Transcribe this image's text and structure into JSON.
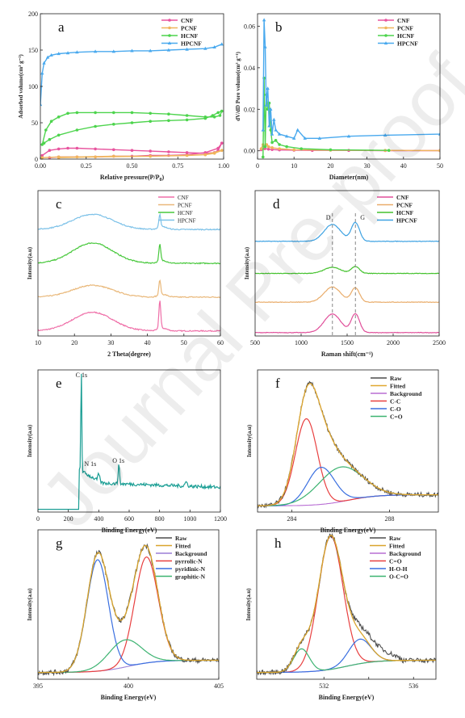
{
  "watermark": "Journal Pre-proof",
  "chart_data": [
    {
      "id": "a",
      "panel_label": "a",
      "type": "line",
      "xlabel": "Relative pressure(P/P",
      "xlabel_sub": "0",
      "xlabel_tail": ")",
      "ylabel": "Adsorbed volume(cm³ g⁻¹)",
      "xlim": [
        0,
        1
      ],
      "ylim": [
        0,
        200
      ],
      "xticks": [
        0.0,
        0.25,
        0.5,
        0.75,
        1.0
      ],
      "xtick_labels": [
        "0.00",
        "0.25",
        "0.50",
        "0.75",
        "1.00"
      ],
      "yticks": [
        0,
        50,
        100,
        150,
        200
      ],
      "ytick_labels": [
        "0",
        "50",
        "100",
        "150",
        "200"
      ],
      "legend": [
        "CNF",
        "PCNF",
        "HCNF",
        "HPCNF"
      ],
      "colors": [
        "#e8549e",
        "#f0b55c",
        "#4dd44d",
        "#49a9ee"
      ],
      "series": [
        {
          "name": "CNF",
          "x": [
            0.01,
            0.05,
            0.1,
            0.15,
            0.2,
            0.3,
            0.4,
            0.5,
            0.6,
            0.7,
            0.8,
            0.9,
            0.95,
            0.97,
            0.99,
            0.97,
            0.9,
            0.8,
            0.7,
            0.6,
            0.5,
            0.4,
            0.3,
            0.2,
            0.1,
            0.05
          ],
          "y": [
            5,
            12,
            14,
            15,
            15,
            14,
            13,
            12,
            11,
            10,
            9,
            8,
            9,
            12,
            22,
            15,
            9,
            6,
            5,
            5,
            4,
            4,
            3,
            3,
            3,
            2
          ]
        },
        {
          "name": "PCNF",
          "x": [
            0.01,
            0.1,
            0.2,
            0.4,
            0.6,
            0.8,
            0.9,
            0.95,
            0.99,
            0.9,
            0.6,
            0.3,
            0.1
          ],
          "y": [
            2,
            3,
            3,
            4,
            4,
            5,
            6,
            8,
            12,
            6,
            4,
            3,
            2
          ]
        },
        {
          "name": "HCNF",
          "x": [
            0.01,
            0.03,
            0.06,
            0.1,
            0.15,
            0.2,
            0.3,
            0.4,
            0.5,
            0.6,
            0.7,
            0.8,
            0.9,
            0.95,
            0.98,
            0.99,
            0.97,
            0.94,
            0.9,
            0.8,
            0.7,
            0.6,
            0.5,
            0.4,
            0.3,
            0.2,
            0.1,
            0.05,
            0.02
          ],
          "y": [
            20,
            40,
            52,
            58,
            63,
            64,
            64,
            64,
            64,
            63,
            62,
            60,
            58,
            58,
            60,
            66,
            64,
            60,
            56,
            54,
            53,
            52,
            50,
            48,
            45,
            40,
            33,
            27,
            22
          ]
        },
        {
          "name": "HPCNF",
          "x": [
            0.0,
            0.01,
            0.02,
            0.04,
            0.06,
            0.1,
            0.15,
            0.2,
            0.3,
            0.4,
            0.5,
            0.6,
            0.7,
            0.8,
            0.9,
            0.95,
            0.99
          ],
          "y": [
            75,
            118,
            132,
            140,
            143,
            145,
            146,
            147,
            148,
            148,
            149,
            149,
            150,
            151,
            152,
            154,
            158
          ]
        }
      ]
    },
    {
      "id": "b",
      "panel_label": "b",
      "type": "line",
      "xlabel": "Diameter(nm)",
      "ylabel": "dV/dD Pore volume(cm³ g⁻¹)",
      "xlim": [
        0,
        50
      ],
      "ylim": [
        -0.004,
        0.066
      ],
      "xticks": [
        0,
        10,
        20,
        30,
        40,
        50
      ],
      "xtick_labels": [
        "0",
        "10",
        "20",
        "30",
        "40",
        "50"
      ],
      "yticks": [
        0.0,
        0.02,
        0.04,
        0.06
      ],
      "ytick_labels": [
        "0.00",
        "0.02",
        "0.04",
        "0.06"
      ],
      "legend": [
        "CNF",
        "PCNF",
        "HCNF",
        "HPCNF"
      ],
      "colors": [
        "#e8549e",
        "#f0b55c",
        "#4dd44d",
        "#49a9ee"
      ],
      "series": [
        {
          "name": "CNF",
          "x": [
            1,
            2,
            3,
            4,
            6,
            10,
            15,
            25,
            35,
            50
          ],
          "y": [
            0.0005,
            0.001,
            0.0008,
            0.0006,
            0.0004,
            0.0003,
            0.0002,
            0.0002,
            0.0001,
            0.0001
          ]
        },
        {
          "name": "PCNF",
          "x": [
            1,
            1.5,
            2,
            2.5,
            3,
            4,
            6,
            10,
            20,
            35,
            50
          ],
          "y": [
            0.001,
            0.003,
            0.002,
            0.003,
            0.002,
            0.0015,
            0.001,
            0.0005,
            0.0003,
            0.0002,
            0.0001
          ]
        },
        {
          "name": "HCNF",
          "x": [
            1.5,
            1.8,
            2.1,
            2.4,
            2.8,
            3.2,
            3.6,
            4,
            5,
            6,
            8,
            12,
            20,
            36
          ],
          "y": [
            -0.003,
            0.035,
            0.002,
            0.027,
            0.02,
            0.023,
            0.01,
            0.004,
            0.005,
            0.003,
            0.002,
            0.001,
            0.0005,
            0.0002
          ]
        },
        {
          "name": "HPCNF",
          "x": [
            1.5,
            1.8,
            2.1,
            2.4,
            2.8,
            3.2,
            3.6,
            4,
            4.5,
            5,
            6,
            8,
            10,
            11,
            13,
            17,
            25,
            35,
            50
          ],
          "y": [
            0.01,
            0.063,
            0.05,
            0.022,
            0.03,
            0.012,
            0.02,
            0.008,
            0.015,
            0.01,
            0.008,
            0.007,
            0.006,
            0.01,
            0.006,
            0.006,
            0.007,
            0.0075,
            0.008
          ]
        }
      ]
    },
    {
      "id": "c",
      "panel_label": "c",
      "type": "line",
      "xlabel": "2 Theta(degree)",
      "ylabel": "Intensity(a.u)",
      "xlim": [
        10,
        60
      ],
      "ylim": [
        0,
        4.3
      ],
      "xticks": [
        10,
        20,
        30,
        40,
        50,
        60
      ],
      "xtick_labels": [
        "10",
        "20",
        "30",
        "40",
        "50",
        "60"
      ],
      "legend": [
        "CNF",
        "PCNF",
        "HCNF",
        "HPCNF"
      ],
      "colors": [
        "#ef6fa8",
        "#e9b87a",
        "#48c83c",
        "#7cc1e8"
      ],
      "offsets": [
        0.0,
        1.0,
        2.0,
        3.0
      ],
      "series": [
        {
          "name": "CNF"
        },
        {
          "name": "PCNF"
        },
        {
          "name": "HCNF"
        },
        {
          "name": "HPCNF"
        }
      ]
    },
    {
      "id": "d",
      "panel_label": "d",
      "type": "line",
      "xlabel": "Raman shift(cm⁻¹)",
      "ylabel": "Intensity(a.u)",
      "xlim": [
        500,
        2500
      ],
      "ylim": [
        0,
        4.3
      ],
      "xticks": [
        500,
        1000,
        1500,
        2000,
        2500
      ],
      "xtick_labels": [
        "500",
        "1000",
        "1500",
        "2000",
        "2500"
      ],
      "legend": [
        "CNF",
        "PCNF",
        "HCNF",
        "HPCNF"
      ],
      "colors": [
        "#e04f9a",
        "#e9ac6a",
        "#45c22e",
        "#3ea2e2"
      ],
      "band_labels": [
        "D",
        "G"
      ],
      "band_positions": [
        1340,
        1590
      ],
      "offsets": [
        0.0,
        0.9,
        1.75,
        2.7
      ],
      "series": [
        {
          "name": "CNF"
        },
        {
          "name": "PCNF"
        },
        {
          "name": "HCNF"
        },
        {
          "name": "HPCNF"
        }
      ]
    },
    {
      "id": "e",
      "panel_label": "e",
      "type": "line",
      "xlabel": "Binding Energy(eV)",
      "ylabel": "Intensity(a.u)",
      "xlim": [
        0,
        1200
      ],
      "ylim": [
        0,
        1.05
      ],
      "xticks": [
        0,
        200,
        400,
        600,
        800,
        1000,
        1200
      ],
      "xtick_labels": [
        "0",
        "200",
        "400",
        "600",
        "800",
        "1000",
        "1200"
      ],
      "peak_labels": [
        "C 1s",
        "N 1s",
        "O 1s"
      ],
      "peak_positions": [
        285,
        400,
        532
      ],
      "colors": [
        "#1a9e94"
      ],
      "series": [
        {
          "name": "survey"
        }
      ]
    },
    {
      "id": "f",
      "panel_label": "f",
      "type": "line",
      "xlabel": "Binding Energy(eV)",
      "ylabel": "Intensity(a.u)",
      "xlim": [
        282.6,
        290
      ],
      "ylim": [
        0,
        1.15
      ],
      "xticks": [
        284,
        288
      ],
      "xtick_labels": [
        "284",
        "288"
      ],
      "legend": [
        "Raw",
        "Fitted",
        "Background",
        "C-C",
        "C-O",
        "C=O"
      ],
      "colors": [
        "#4d4d4d",
        "#e0a830",
        "#b96fd4",
        "#e84040",
        "#3a6fe0",
        "#3cb371"
      ],
      "series": [
        {
          "name": "C-C",
          "center": 284.6,
          "height": 0.7,
          "width": 0.45
        },
        {
          "name": "C-O",
          "center": 285.2,
          "height": 0.3,
          "width": 0.55
        },
        {
          "name": "C=O",
          "center": 286.0,
          "height": 0.28,
          "width": 0.9
        }
      ]
    },
    {
      "id": "g",
      "panel_label": "g",
      "type": "line",
      "xlabel": "Binding Energy(eV)",
      "ylabel": "Intensity(a.u)",
      "xlim": [
        395,
        405
      ],
      "ylim": [
        0,
        1.1
      ],
      "xticks": [
        395,
        400,
        405
      ],
      "xtick_labels": [
        "395",
        "400",
        "405"
      ],
      "legend": [
        "Raw",
        "Fitted",
        "Background",
        "pyrrolic-N",
        "pyridinic-N",
        "graphitic-N"
      ],
      "colors": [
        "#4d4d4d",
        "#d9a52c",
        "#9b7fd6",
        "#e84040",
        "#3a6fe0",
        "#3cb371"
      ],
      "series": [
        {
          "name": "pyrrolic-N",
          "center": 401.0,
          "height": 0.78,
          "width": 0.65
        },
        {
          "name": "pyridinic-N",
          "center": 398.3,
          "height": 0.82,
          "width": 0.6
        },
        {
          "name": "graphitic-N",
          "center": 399.8,
          "height": 0.2,
          "width": 0.9
        }
      ]
    },
    {
      "id": "h",
      "panel_label": "h",
      "type": "line",
      "xlabel": "Binding Energy(eV)",
      "ylabel": "Intensity(a.u)",
      "xlim": [
        529,
        537
      ],
      "ylim": [
        0,
        1.1
      ],
      "xticks": [
        532,
        534,
        536
      ],
      "xtick_labels": [
        "532",
        "",
        "536"
      ],
      "legend": [
        "Raw",
        "Fitted",
        "Background",
        "C=O",
        "H-O-H",
        "O-C=O"
      ],
      "colors": [
        "#4d4d4d",
        "#d9a52c",
        "#b96fd4",
        "#e84040",
        "#3a6fe0",
        "#3cb371"
      ],
      "series": [
        {
          "name": "C=O",
          "center": 532.3,
          "height": 0.98,
          "width": 0.55
        },
        {
          "name": "H-O-H",
          "center": 533.6,
          "height": 0.18,
          "width": 0.5
        },
        {
          "name": "O-C=O",
          "center": 531.0,
          "height": 0.17,
          "width": 0.35
        }
      ]
    }
  ]
}
